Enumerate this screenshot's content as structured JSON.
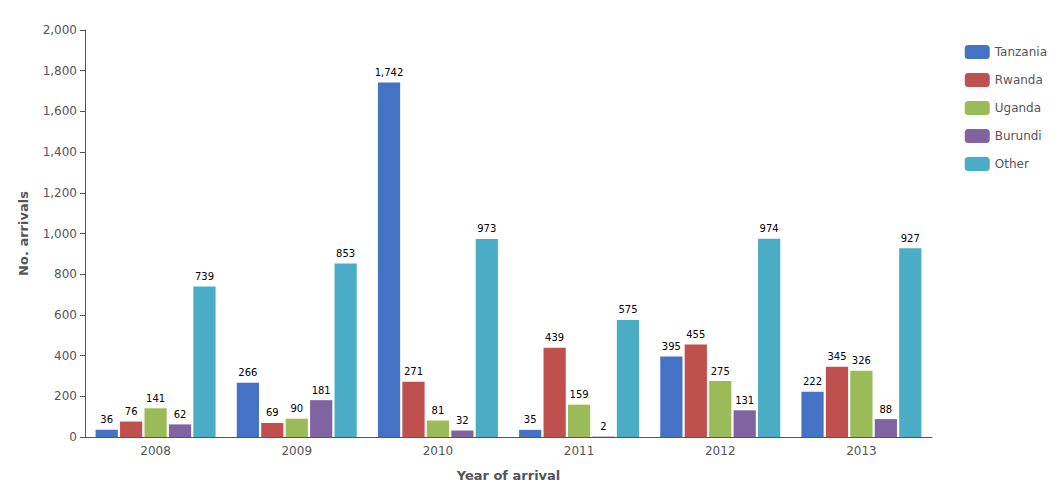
{
  "chart_data": {
    "type": "bar",
    "xlabel": "Year of arrival",
    "ylabel": "No. arrivals",
    "categories": [
      "2008",
      "2009",
      "2010",
      "2011",
      "2012",
      "2013"
    ],
    "series": [
      {
        "name": "Tanzania",
        "color": "#4472C4",
        "values": [
          36,
          266,
          1742,
          35,
          395,
          222
        ],
        "value_labels": [
          "36",
          "266",
          "1,742",
          "35",
          "395",
          "222"
        ]
      },
      {
        "name": "Rwanda",
        "color": "#C0504D",
        "values": [
          76,
          69,
          271,
          439,
          455,
          345
        ]
      },
      {
        "name": "Uganda",
        "color": "#9BBB59",
        "values": [
          141,
          90,
          81,
          159,
          275,
          326
        ]
      },
      {
        "name": "Burundi",
        "color": "#8064A2",
        "values": [
          62,
          181,
          32,
          2,
          131,
          88
        ]
      },
      {
        "name": "Other",
        "color": "#4BACC6",
        "values": [
          739,
          853,
          973,
          575,
          974,
          927
        ]
      }
    ],
    "ylim": [
      0,
      2000
    ],
    "yticks": [
      0,
      200,
      400,
      600,
      800,
      {
        "value": 1000,
        "label": "1,000"
      },
      {
        "value": 1200,
        "label": "1,200"
      },
      {
        "value": 1400,
        "label": "1,400"
      },
      {
        "value": 1600,
        "label": "1,600"
      },
      {
        "value": 1800,
        "label": "1,800"
      },
      {
        "value": 2000,
        "label": "2,000"
      }
    ],
    "grid": false,
    "legend": "right",
    "data_labels": true
  }
}
